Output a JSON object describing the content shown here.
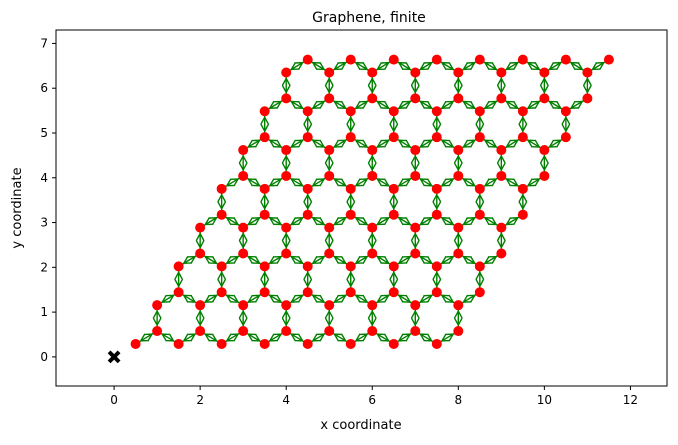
{
  "chart_data": {
    "type": "scatter",
    "title": "Graphene, finite",
    "xlabel": "x coordinate",
    "ylabel": "y coordinate",
    "xlim": [
      -1.35,
      12.85
    ],
    "ylim": [
      -0.65,
      7.3
    ],
    "xticks": [
      0,
      2,
      4,
      6,
      8,
      10,
      12
    ],
    "yticks": [
      0,
      1,
      2,
      3,
      4,
      5,
      6,
      7
    ],
    "lattice": {
      "a1": [
        1.0,
        0.0
      ],
      "a2": [
        0.5,
        0.866
      ],
      "basis": [
        [
          0.5,
          0.289
        ],
        [
          1.0,
          0.577
        ]
      ],
      "n1": 8,
      "n2": 8
    },
    "origin_marker": [
      0,
      0
    ],
    "grid": false,
    "colors": {
      "sites": "#ff0000",
      "bonds": "#008000",
      "origin": "#000000",
      "axes": "#000000"
    }
  }
}
